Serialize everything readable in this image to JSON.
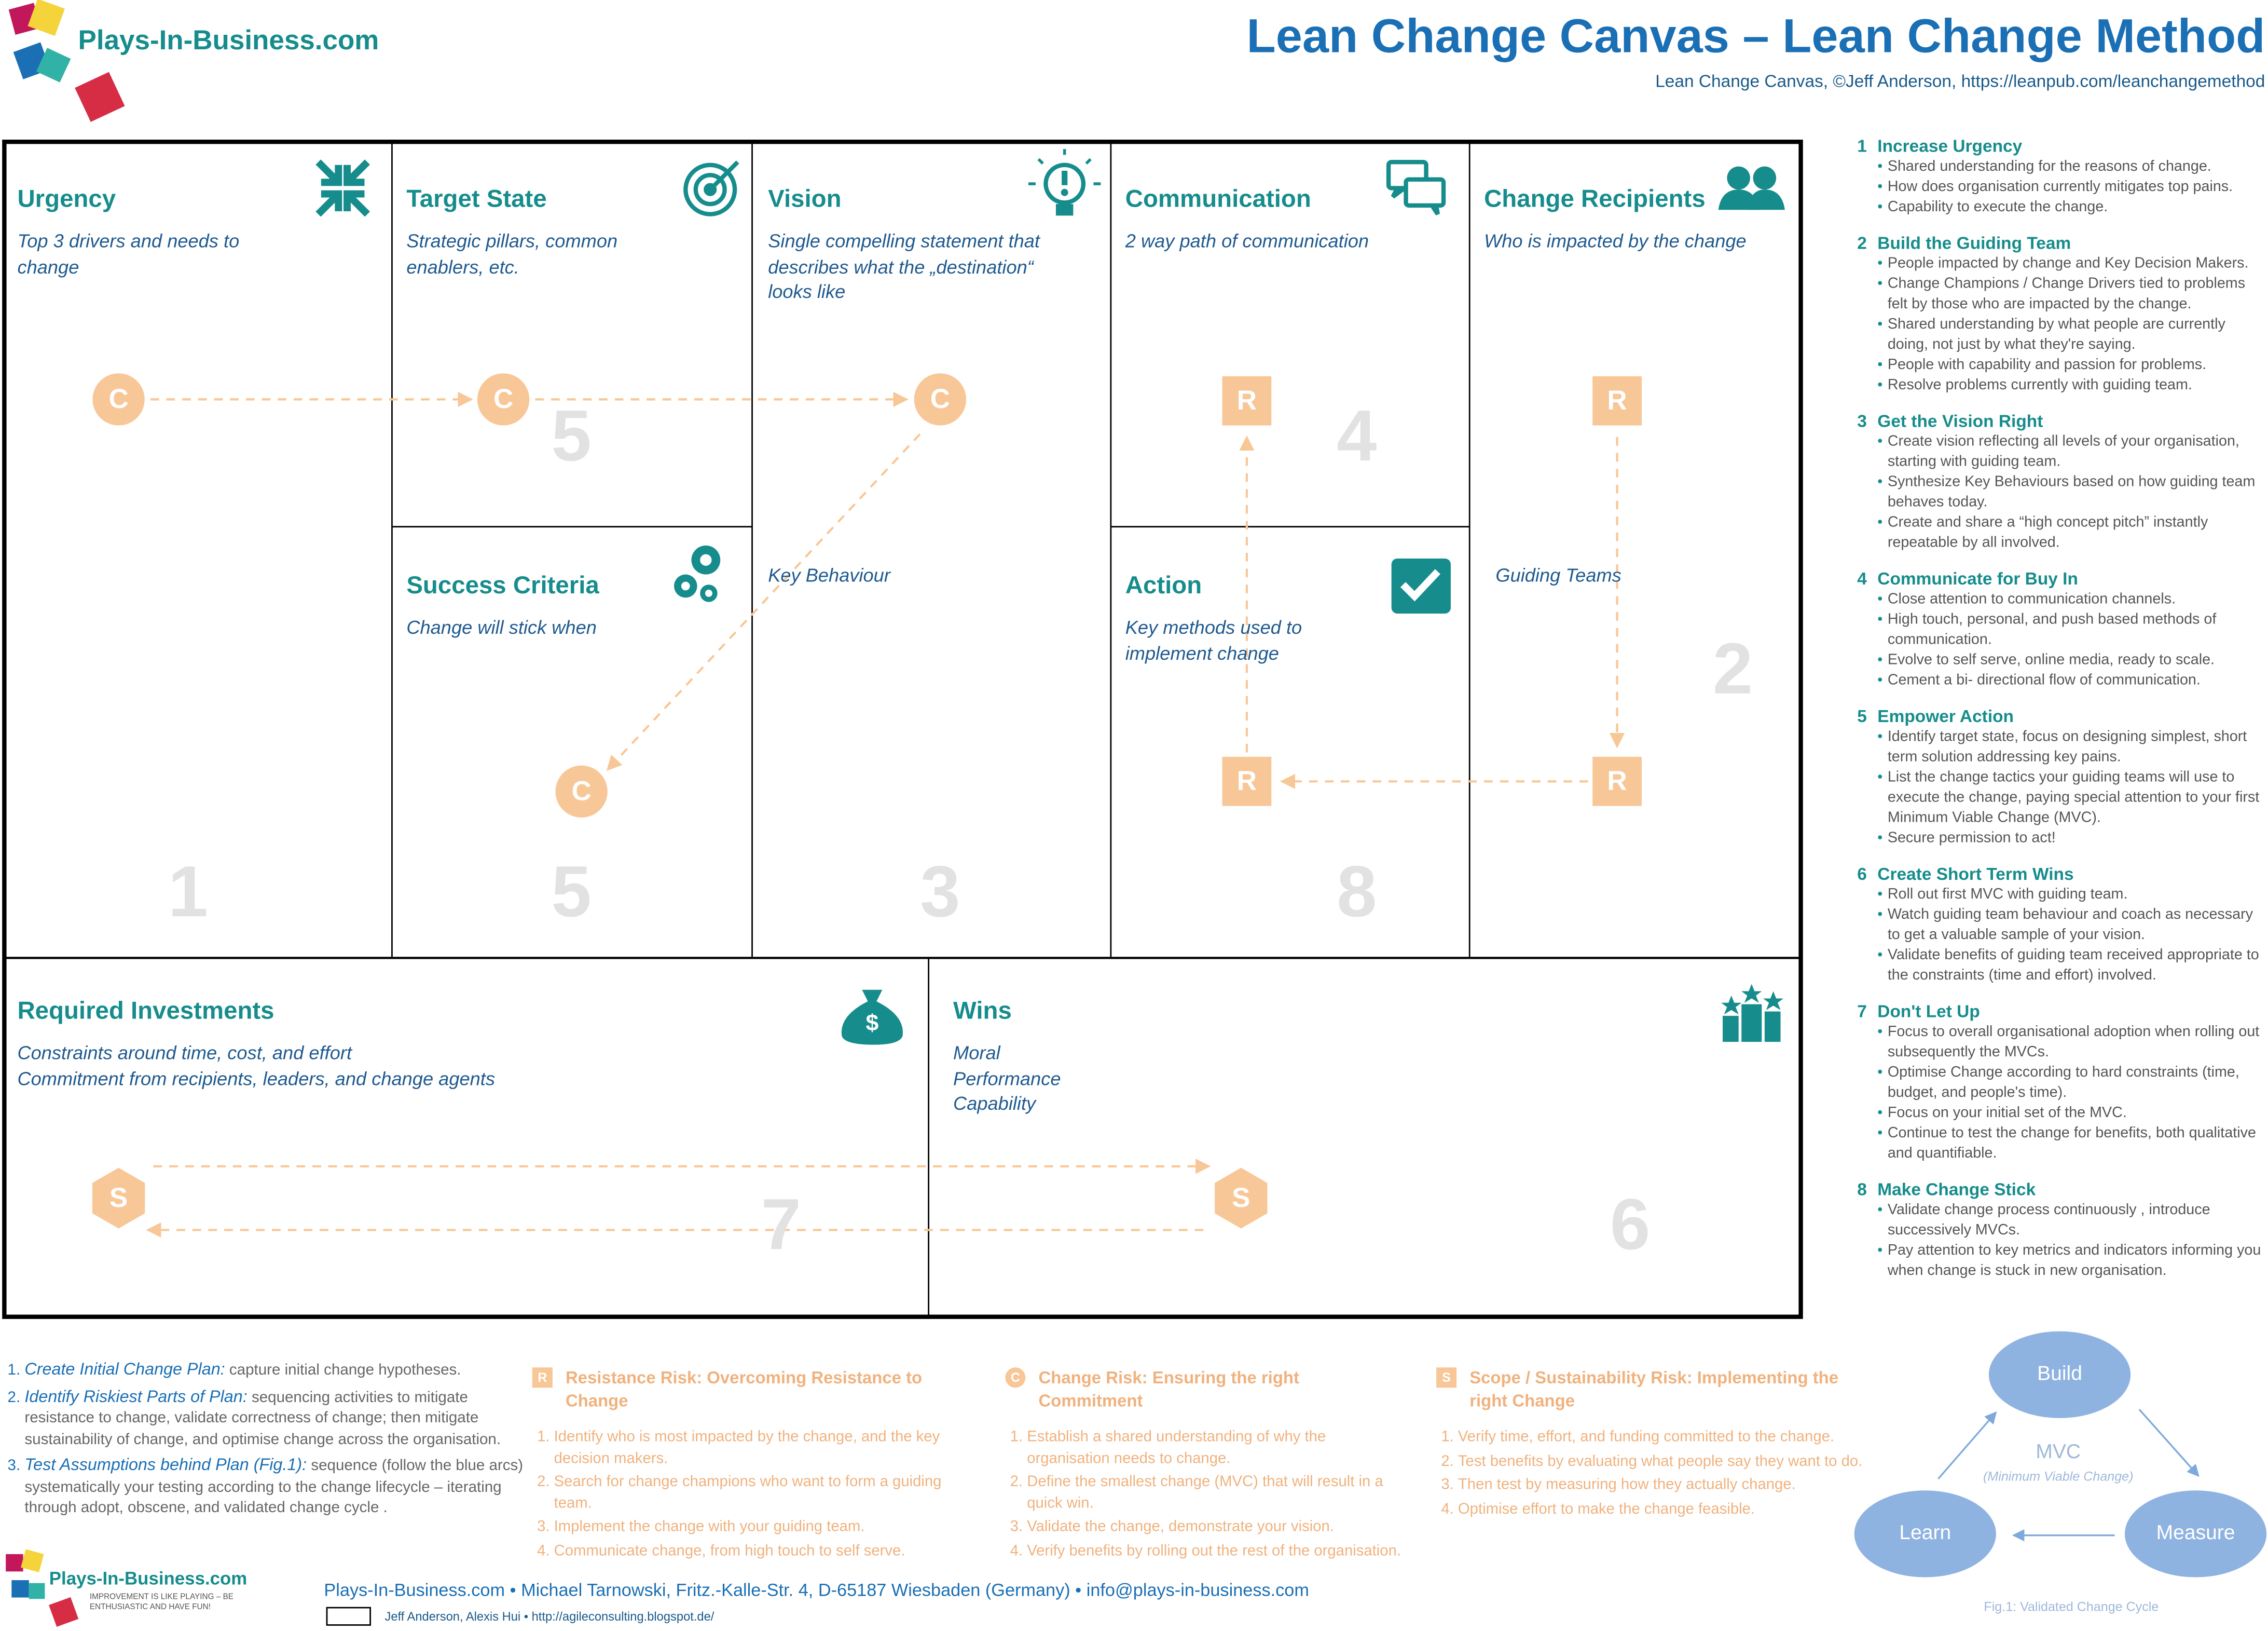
{
  "header": {
    "logo": "Plays-In-Business.com",
    "title": "Lean Change Canvas – Lean Change Method",
    "subtitle": "Lean Change Canvas, ©Jeff Anderson, https://leanpub.com/leanchangemethod"
  },
  "canvas": {
    "boxes": [
      {
        "title": "Urgency",
        "description": [
          "Top 3 drivers and needs to",
          "change"
        ],
        "number": "1"
      },
      {
        "title": "Target State",
        "description": [
          "Strategic pillars, common",
          "enablers, etc."
        ],
        "number": "5"
      },
      {
        "title": "Success Criteria",
        "description": [
          "Change will stick when"
        ],
        "number": "5"
      },
      {
        "title": "Vision",
        "description": [
          "Single compelling statement that",
          "describes what the „destination“",
          "looks like"
        ],
        "number": "3"
      },
      {
        "title": "Communication",
        "description": [
          "2 way path of communication"
        ],
        "number": "4"
      },
      {
        "title": "Action",
        "description": [
          "Key methods used to",
          "implement change"
        ],
        "number": "8"
      },
      {
        "title": "Change Recipients",
        "description": [
          "Who is impacted by the change"
        ],
        "number": "2"
      },
      {
        "title": "Required Investments",
        "description": [
          "Constraints around time, cost, and effort",
          "Commitment from recipients, leaders, and change agents"
        ],
        "number": "7"
      },
      {
        "title": "Wins",
        "description": [
          "Moral",
          "Performance",
          "Capability"
        ],
        "number": "6"
      }
    ],
    "notes": [
      "Key Behaviour",
      "Guiding Teams"
    ],
    "markers": [
      "C",
      "C",
      "C",
      "C",
      "R",
      "R",
      "R",
      "R",
      "S",
      "S"
    ]
  },
  "steps": [
    {
      "number": "1",
      "title": "Increase Urgency",
      "bullets": [
        "Shared understanding for the reasons of change.",
        "How does organisation currently mitigates top pains.",
        "Capability to execute the change."
      ]
    },
    {
      "number": "2",
      "title": "Build the Guiding Team",
      "bullets": [
        "People impacted by change and Key Decision Makers.",
        "Change Champions / Change Drivers tied to problems felt by those who are impacted by the change.",
        "Shared understanding by what people are currently doing, not just by what they're saying.",
        "People with capability and passion for problems.",
        "Resolve problems currently with guiding team."
      ]
    },
    {
      "number": "3",
      "title": "Get the Vision Right",
      "bullets": [
        "Create vision reflecting all levels of your organisation, starting with guiding team.",
        "Synthesize Key Behaviours based on how guiding team behaves today.",
        "Create and share a “high concept pitch” instantly repeatable by all involved."
      ]
    },
    {
      "number": "4",
      "title": "Communicate for Buy In",
      "bullets": [
        "Close attention to communication channels.",
        "High touch, personal, and push based methods of communication.",
        "Evolve to self serve, online media, ready to scale.",
        "Cement a bi- directional flow of communication."
      ]
    },
    {
      "number": "5",
      "title": "Empower Action",
      "bullets": [
        "Identify target state, focus on designing simplest, short term solution addressing key pains.",
        "List the change tactics your guiding teams will use to execute the change, paying special attention to your first Minimum Viable Change (MVC).",
        "Secure permission to act!"
      ]
    },
    {
      "number": "6",
      "title": "Create Short Term Wins",
      "bullets": [
        "Roll out first MVC with guiding team.",
        "Watch guiding team behaviour and coach as necessary to get a valuable sample of your vision.",
        "Validate benefits of guiding team received appropriate to the constraints (time and effort) involved."
      ]
    },
    {
      "number": "7",
      "title": "Don't Let Up",
      "bullets": [
        "Focus to overall organisational adoption when rolling out subsequently the MVCs.",
        "Optimise Change according to hard constraints (time, budget, and people's time).",
        "Focus on your initial set of the MVC.",
        "Continue to test the change for benefits, both qualitative and quantifiable."
      ]
    },
    {
      "number": "8",
      "title": "Make Change Stick",
      "bullets": [
        "Validate change process continuously , introduce successively MVCs.",
        "Pay attention to key metrics and indicators informing you when change is stuck in new organisation."
      ]
    }
  ],
  "plan": [
    {
      "lead": "Create Initial Change Plan:",
      "text": "capture initial change hypotheses."
    },
    {
      "lead": "Identify Riskiest Parts of Plan:",
      "text": "sequencing activities to mitigate resistance to change, validate correctness of change; then mitigate sustainability of change, and optimise change across the organisation."
    },
    {
      "lead": "Test Assumptions behind Plan (Fig.1):",
      "text": "sequence (follow the blue arcs) systematically your testing according to the change lifecycle – iterating through adopt, obscene, and validated change cycle ."
    }
  ],
  "risks": [
    {
      "badge": "R",
      "title": "Resistance Risk: Overcoming Resistance to Change",
      "items": [
        "Identify who is most impacted by the change, and the key decision makers.",
        "Search for change champions who want to form a guiding team.",
        "Implement the change with your guiding team.",
        "Communicate change, from high touch to self serve."
      ]
    },
    {
      "badge": "C",
      "title": "Change Risk: Ensuring the right Commitment",
      "items": [
        "Establish a shared understanding of why the organisation needs to change.",
        "Define the smallest change (MVC) that will result in a quick win.",
        "Validate the change, demonstrate your vision.",
        "Verify  benefits by rolling out the rest of the organisation."
      ]
    },
    {
      "badge": "S",
      "title": "Scope / Sustainability Risk: Implementing the right Change",
      "items": [
        "Verify time, effort, and funding committed to the change.",
        "Test benefits by evaluating what people say they want to do.",
        "Then test by measuring how they actually change.",
        "Optimise effort to make the change feasible."
      ]
    }
  ],
  "cycle": {
    "nodes": [
      "Build",
      "Measure",
      "Learn"
    ],
    "center": "MVC",
    "center_note": "(Minimum Viable Change)",
    "caption": "Fig.1: Validated Change Cycle"
  },
  "footer": {
    "logo": "Plays-In-Business.com",
    "tagline": "IMPROVEMENT IS LIKE PLAYING – BE ENTHUSIASTIC AND HAVE FUN!",
    "address": "Plays-In-Business.com • Michael Tarnowski, Fritz.-Kalle-Str. 4, D-65187 Wiesbaden (Germany) • info@plays-in-business.com",
    "credits": "Jeff Anderson, Alexis Hui • http://agileconsulting.blogspot.de/"
  }
}
